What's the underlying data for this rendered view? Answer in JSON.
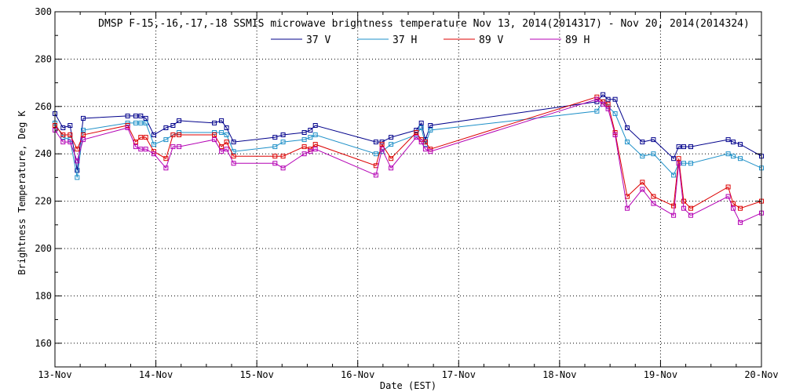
{
  "chart_data": {
    "type": "line",
    "title": "DMSP F-15,-16,-17,-18 SSMIS microwave brightness temperature Nov 13, 2014(2014317) - Nov 20, 2014(2014324)",
    "xlabel": "Date (EST)",
    "ylabel": "Brightness Temperature, Deg K",
    "xlim": [
      0,
      7
    ],
    "ylim": [
      150,
      300
    ],
    "x_ticks": [
      {
        "value": 0,
        "label": "13-Nov"
      },
      {
        "value": 1,
        "label": "14-Nov"
      },
      {
        "value": 2,
        "label": "15-Nov"
      },
      {
        "value": 3,
        "label": "16-Nov"
      },
      {
        "value": 4,
        "label": "17-Nov"
      },
      {
        "value": 5,
        "label": "18-Nov"
      },
      {
        "value": 6,
        "label": "19-Nov"
      },
      {
        "value": 7,
        "label": "20-Nov"
      }
    ],
    "y_ticks": [
      160,
      180,
      200,
      220,
      240,
      260,
      280,
      300
    ],
    "grid": true,
    "legend_position": "top",
    "series": [
      {
        "name": "37 V",
        "color": "#00008b",
        "x": [
          0.0,
          0.08,
          0.15,
          0.22,
          0.28,
          0.72,
          0.8,
          0.85,
          0.9,
          0.98,
          1.1,
          1.17,
          1.23,
          1.58,
          1.65,
          1.7,
          1.77,
          2.18,
          2.26,
          2.47,
          2.53,
          2.58,
          3.18,
          3.24,
          3.33,
          3.58,
          3.63,
          3.67,
          3.72,
          5.37,
          5.43,
          5.48,
          5.55,
          5.67,
          5.82,
          5.93,
          6.13,
          6.18,
          6.23,
          6.3,
          6.67,
          6.72,
          6.79,
          7.0
        ],
        "y": [
          257,
          251,
          252,
          233,
          255,
          256,
          256,
          256,
          255,
          248,
          251,
          252,
          254,
          253,
          254,
          251,
          245,
          247,
          248,
          249,
          250,
          252,
          245,
          245,
          247,
          250,
          253,
          246,
          252,
          262,
          265,
          263,
          263,
          251,
          245,
          246,
          238,
          243,
          243,
          243,
          246,
          245,
          244,
          239
        ]
      },
      {
        "name": "37 H",
        "color": "#1e90c8",
        "x": [
          0.0,
          0.08,
          0.15,
          0.22,
          0.28,
          0.72,
          0.8,
          0.85,
          0.9,
          0.98,
          1.1,
          1.17,
          1.23,
          1.58,
          1.65,
          1.7,
          1.77,
          2.18,
          2.26,
          2.47,
          2.53,
          2.58,
          3.18,
          3.24,
          3.33,
          3.58,
          3.63,
          3.67,
          3.72,
          5.37,
          5.43,
          5.48,
          5.55,
          5.67,
          5.82,
          5.93,
          6.13,
          6.18,
          6.23,
          6.3,
          6.67,
          6.72,
          6.79,
          7.0
        ],
        "y": [
          253,
          247,
          246,
          230,
          250,
          253,
          253,
          253,
          253,
          244,
          246,
          248,
          249,
          249,
          249,
          248,
          241,
          243,
          245,
          246,
          247,
          248,
          240,
          241,
          244,
          248,
          251,
          244,
          250,
          258,
          262,
          260,
          257,
          245,
          239,
          240,
          231,
          236,
          236,
          236,
          240,
          239,
          238,
          234
        ]
      },
      {
        "name": "89 V",
        "color": "#dc0000",
        "x": [
          0.0,
          0.08,
          0.15,
          0.22,
          0.28,
          0.72,
          0.8,
          0.85,
          0.9,
          0.98,
          1.1,
          1.17,
          1.23,
          1.58,
          1.65,
          1.7,
          1.77,
          2.18,
          2.26,
          2.47,
          2.53,
          2.58,
          3.18,
          3.24,
          3.33,
          3.58,
          3.63,
          3.67,
          3.72,
          5.37,
          5.43,
          5.48,
          5.55,
          5.67,
          5.82,
          5.93,
          6.13,
          6.18,
          6.23,
          6.3,
          6.67,
          6.72,
          6.79,
          7.0
        ],
        "y": [
          252,
          248,
          248,
          242,
          248,
          252,
          245,
          247,
          247,
          241,
          238,
          248,
          248,
          248,
          243,
          245,
          239,
          239,
          239,
          243,
          242,
          244,
          235,
          244,
          238,
          249,
          246,
          245,
          242,
          264,
          262,
          261,
          249,
          222,
          228,
          222,
          218,
          238,
          220,
          217,
          226,
          219,
          217,
          220
        ]
      },
      {
        "name": "89 H",
        "color": "#b400b4",
        "x": [
          0.0,
          0.08,
          0.15,
          0.22,
          0.28,
          0.72,
          0.8,
          0.85,
          0.9,
          0.98,
          1.1,
          1.17,
          1.23,
          1.58,
          1.65,
          1.7,
          1.77,
          2.18,
          2.26,
          2.47,
          2.53,
          2.58,
          3.18,
          3.24,
          3.33,
          3.58,
          3.63,
          3.67,
          3.72,
          5.37,
          5.43,
          5.48,
          5.55,
          5.67,
          5.82,
          5.93,
          6.13,
          6.18,
          6.23,
          6.3,
          6.67,
          6.72,
          6.79,
          7.0
        ],
        "y": [
          250,
          245,
          245,
          237,
          246,
          251,
          243,
          242,
          242,
          240,
          234,
          243,
          243,
          246,
          241,
          242,
          236,
          236,
          234,
          240,
          241,
          242,
          231,
          242,
          234,
          247,
          245,
          242,
          241,
          263,
          261,
          259,
          248,
          217,
          225,
          219,
          214,
          236,
          217,
          214,
          222,
          217,
          211,
          215
        ]
      }
    ]
  }
}
